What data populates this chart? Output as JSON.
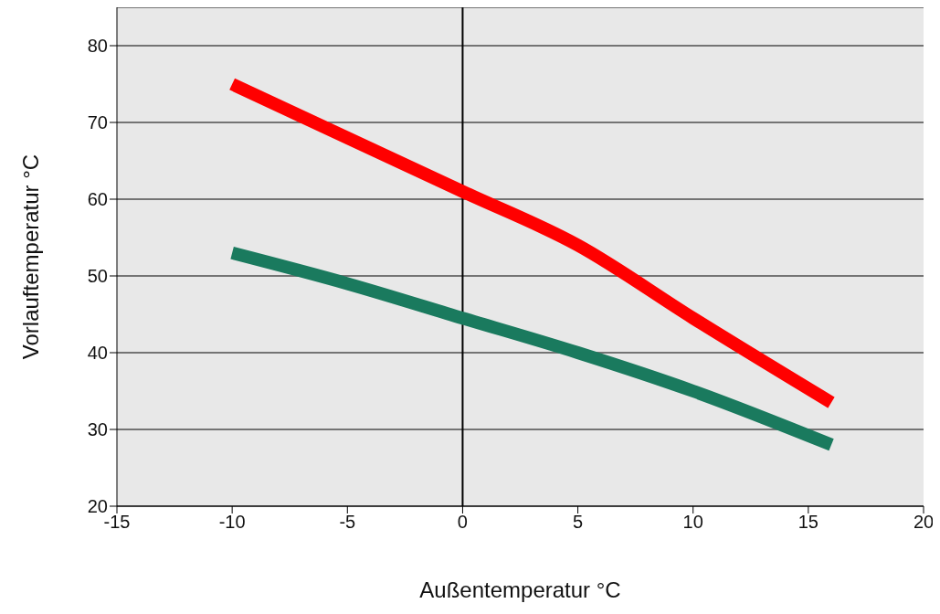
{
  "chart_data": {
    "type": "line",
    "xlabel": "Außentemperatur °C",
    "ylabel": "Vorlauftemperatur  °C",
    "x": [
      -10,
      -5,
      0,
      5,
      10,
      16
    ],
    "series": [
      {
        "color": "#ff0000",
        "values": [
          75,
          68,
          61,
          54,
          44.5,
          33.5
        ]
      },
      {
        "color": "#1a7a5e",
        "values": [
          53,
          49,
          44.5,
          40,
          35,
          28
        ]
      }
    ],
    "xlim": [
      -15,
      20
    ],
    "xticks": [
      -15,
      -10,
      -5,
      0,
      5,
      10,
      15,
      20
    ],
    "ylim": [
      20,
      85
    ],
    "yticks": [
      20,
      30,
      40,
      50,
      60,
      70,
      80
    ],
    "grid": "y",
    "legend": false,
    "marker": "none",
    "line_style": "solid",
    "ref_lines": [
      {
        "axis": "x",
        "value": 0,
        "color": "#000000"
      }
    ]
  }
}
